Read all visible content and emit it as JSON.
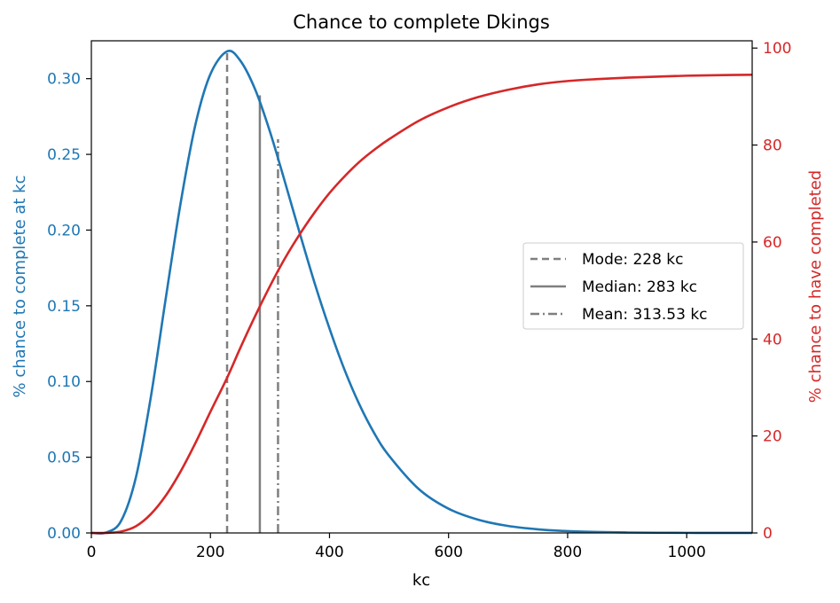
{
  "chart_data": {
    "type": "line",
    "title": "Chance to complete Dkings",
    "xlabel": "kc",
    "ylabel_left": "% chance to complete at kc",
    "ylabel_right": "% chance to have completed",
    "xlim": [
      0,
      1110
    ],
    "ylim_left": [
      0,
      0.325
    ],
    "ylim_right": [
      0,
      101.5
    ],
    "x_ticks": [
      0,
      200,
      400,
      600,
      800,
      1000
    ],
    "y_ticks_left": [
      0.0,
      0.05,
      0.1,
      0.15,
      0.2,
      0.25,
      0.3
    ],
    "y_ticks_left_labels": [
      "0.00",
      "0.05",
      "0.10",
      "0.15",
      "0.20",
      "0.25",
      "0.30"
    ],
    "y_ticks_right": [
      0,
      20,
      40,
      60,
      80,
      100
    ],
    "grid": false,
    "legend_position": "center-right",
    "colors": {
      "pdf": "#1f77b4",
      "cdf": "#d62728",
      "markers": "#7f7f7f"
    },
    "series": [
      {
        "axis": "left",
        "x": [
          0,
          25,
          50,
          75,
          100,
          125,
          150,
          175,
          200,
          228,
          250,
          275,
          300,
          325,
          350,
          375,
          400,
          425,
          450,
          475,
          500,
          550,
          600,
          650,
          700,
          750,
          800,
          850,
          900,
          950,
          1000,
          1050,
          1110
        ],
        "values": [
          0.0,
          0.0003,
          0.008,
          0.037,
          0.09,
          0.155,
          0.218,
          0.27,
          0.303,
          0.318,
          0.312,
          0.293,
          0.265,
          0.232,
          0.198,
          0.165,
          0.135,
          0.108,
          0.085,
          0.066,
          0.051,
          0.029,
          0.016,
          0.0087,
          0.0046,
          0.0024,
          0.0012,
          0.0006,
          0.0003,
          0.00015,
          7e-05,
          3e-05,
          1e-05
        ]
      },
      {
        "axis": "right",
        "x": [
          0,
          25,
          50,
          75,
          100,
          125,
          150,
          175,
          200,
          228,
          250,
          275,
          300,
          325,
          350,
          375,
          400,
          425,
          450,
          475,
          500,
          550,
          600,
          650,
          700,
          750,
          800,
          850,
          900,
          950,
          1000,
          1050,
          1110
        ],
        "values": [
          0.0,
          0.01,
          0.3,
          1.4,
          3.9,
          7.7,
          12.7,
          18.6,
          25.0,
          32.0,
          38.1,
          44.7,
          50.9,
          56.6,
          61.6,
          66.1,
          70.1,
          73.5,
          76.5,
          79.0,
          81.2,
          85.0,
          87.8,
          89.9,
          91.4,
          92.5,
          93.2,
          93.6,
          93.9,
          94.1,
          94.3,
          94.4,
          94.5
        ]
      }
    ],
    "reference_lines": [
      {
        "x": 228,
        "style": "dashed",
        "top_left_value": 0.318,
        "label": "Mode: 228 kc"
      },
      {
        "x": 283,
        "style": "solid",
        "top_left_value": 0.289,
        "label": "Median: 283 kc"
      },
      {
        "x": 313.53,
        "style": "dashdot",
        "top_left_value": 0.26,
        "label": "Mean: 313.53 kc"
      }
    ]
  }
}
